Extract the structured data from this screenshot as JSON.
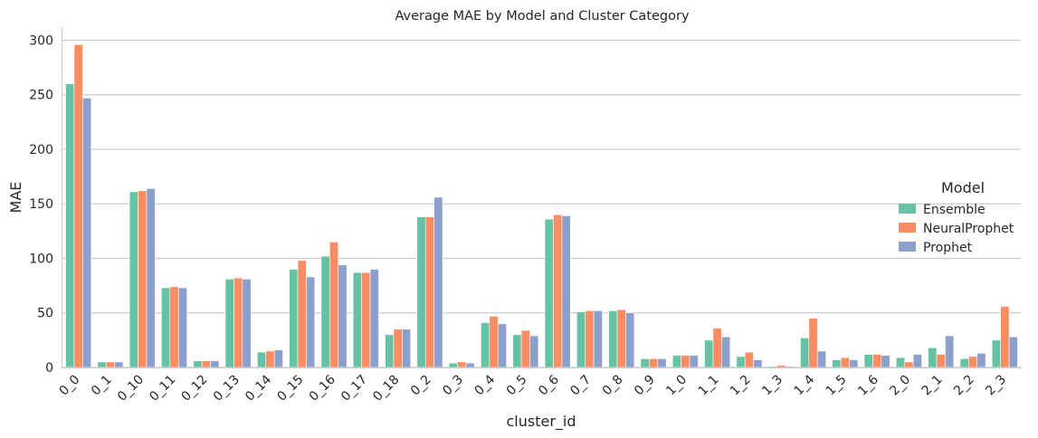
{
  "chart_data": {
    "type": "bar",
    "title": "Average MAE by Model and Cluster Category",
    "xlabel": "cluster_id",
    "ylabel": "MAE",
    "ylim": [
      0,
      312
    ],
    "yticks": [
      0,
      50,
      100,
      150,
      200,
      250,
      300
    ],
    "grid": "horizontal",
    "legend_title": "Model",
    "legend_position": "right",
    "categories": [
      "0_0",
      "0_1",
      "0_10",
      "0_11",
      "0_12",
      "0_13",
      "0_14",
      "0_15",
      "0_16",
      "0_17",
      "0_18",
      "0_2",
      "0_3",
      "0_4",
      "0_5",
      "0_6",
      "0_7",
      "0_8",
      "0_9",
      "1_0",
      "1_1",
      "1_2",
      "1_3",
      "1_4",
      "1_5",
      "1_6",
      "2_0",
      "2_1",
      "2_2",
      "2_3"
    ],
    "series": [
      {
        "name": "Ensemble",
        "color": "#66c2a5",
        "values": [
          260,
          5,
          161,
          73,
          6,
          81,
          14,
          90,
          102,
          87,
          30,
          138,
          4,
          41,
          30,
          136,
          51,
          52,
          8,
          11,
          25,
          10,
          1,
          27,
          7,
          12,
          9,
          18,
          8,
          25
        ]
      },
      {
        "name": "NeuralProphet",
        "color": "#fc8d62",
        "values": [
          296,
          5,
          162,
          74,
          6,
          82,
          15,
          98,
          115,
          87,
          35,
          138,
          5,
          47,
          34,
          140,
          52,
          53,
          8,
          11,
          36,
          14,
          2,
          45,
          9,
          12,
          5,
          12,
          10,
          56
        ]
      },
      {
        "name": "Prophet",
        "color": "#8da0cb",
        "values": [
          247,
          5,
          164,
          73,
          6,
          81,
          16,
          83,
          94,
          90,
          35,
          156,
          4,
          40,
          29,
          139,
          52,
          50,
          8,
          11,
          28,
          7,
          1,
          15,
          7,
          11,
          12,
          29,
          13,
          28
        ]
      }
    ]
  }
}
